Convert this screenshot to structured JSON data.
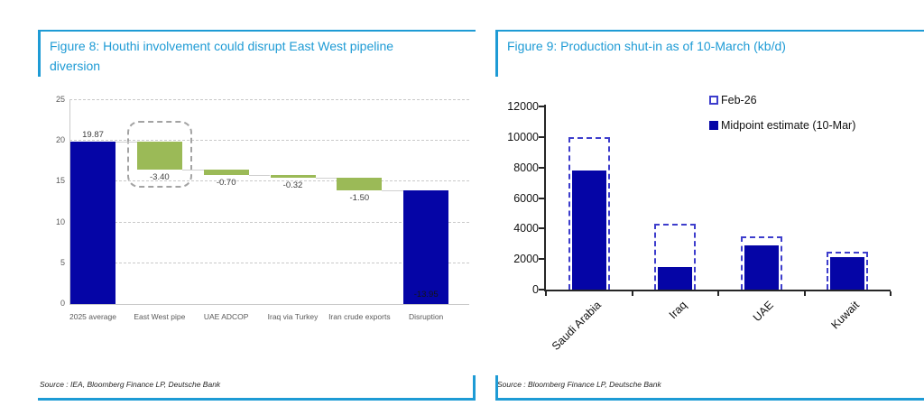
{
  "colors": {
    "accent_blue": "#1e9bd5",
    "navy": "#0505a6",
    "green": "#9bba57",
    "dashed_outline_blue": "#3d3dcc",
    "gridline_gray": "#c9c9c9",
    "highlight_box_gray": "#a3a3a3"
  },
  "chart_data": [
    {
      "id": "figure8",
      "type": "bar",
      "subtype": "waterfall",
      "title": "Figure 8: Houthi involvement could disrupt East West pipeline diversion",
      "source": "Source : IEA, Bloomberg Finance LP, Deutsche Bank",
      "categories": [
        "2025 average",
        "East West pipe",
        "UAE ADCOP",
        "Iraq via Turkey",
        "Iran crude exports",
        "Disruption"
      ],
      "bars": [
        {
          "category": "2025 average",
          "label": "19.87",
          "start": 0,
          "end": 19.87,
          "color": "navy",
          "label_pos": "above"
        },
        {
          "category": "East West pipe",
          "label": "-3.40",
          "start": 19.87,
          "end": 16.47,
          "color": "green",
          "label_pos": "below",
          "highlighted": true
        },
        {
          "category": "UAE ADCOP",
          "label": "-0.70",
          "start": 16.47,
          "end": 15.77,
          "color": "green",
          "label_pos": "below"
        },
        {
          "category": "Iraq via Turkey",
          "label": "-0.32",
          "start": 15.77,
          "end": 15.45,
          "color": "green",
          "label_pos": "below"
        },
        {
          "category": "Iran crude exports",
          "label": "-1.50",
          "start": 15.45,
          "end": 13.95,
          "color": "green",
          "label_pos": "below"
        },
        {
          "category": "Disruption",
          "label": "-13.95",
          "start": 0,
          "end": 13.95,
          "color": "navy",
          "label_pos": "inside"
        }
      ],
      "yticks": [
        0,
        5,
        10,
        15,
        20,
        25
      ],
      "ylim": [
        0,
        25
      ],
      "grid": "dashed horizontal",
      "annotation": "dashed rounded highlight box around East West pipe bar"
    },
    {
      "id": "figure9",
      "type": "bar",
      "subtype": "overlaid outline + solid",
      "title": "Figure 9: Production shut-in as of 10-March (kb/d)",
      "source": "Source : Bloomberg Finance LP, Deutsche Bank",
      "categories": [
        "Saudi Arabia",
        "Iraq",
        "UAE",
        "Kuwait"
      ],
      "series": [
        {
          "name": "Feb-26",
          "style": "dashed-outline",
          "values": [
            10000,
            4300,
            3500,
            2500
          ]
        },
        {
          "name": "Midpoint estimate (10-Mar)",
          "style": "solid",
          "values": [
            7800,
            1450,
            2900,
            2100
          ]
        }
      ],
      "yticks": [
        0,
        2000,
        4000,
        6000,
        8000,
        10000,
        12000
      ],
      "ylim": [
        0,
        12000
      ],
      "grid": "none",
      "legend_position": "top-right"
    }
  ]
}
